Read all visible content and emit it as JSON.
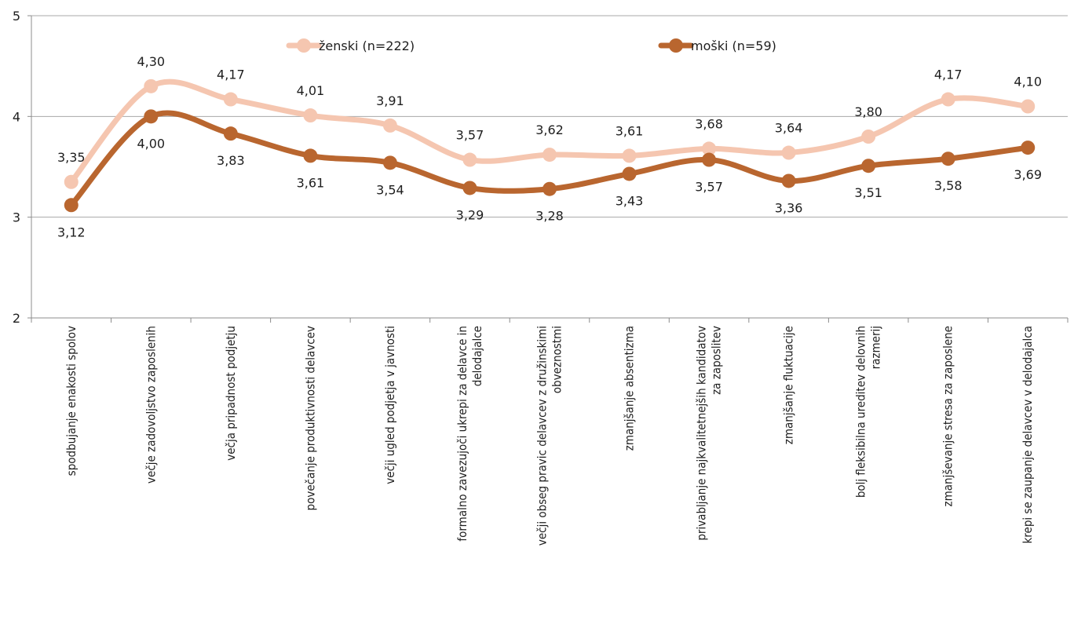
{
  "chart_data": {
    "type": "line",
    "categories": [
      "spodbujanje enakosti spolov",
      "večje zadovoljstvo zaposlenih",
      "večja pripadnost podjetju",
      "povečanje produktivnosti delavcev",
      "večji ugled podjetja v javnosti",
      "formalno zavezujoči ukrepi za delavce in delodajalce",
      "večji obseg pravic delavcev z družinskimi obveznostmi",
      "zmanjšanje absentizma",
      "privabljanje najkvalitetnejših kandidatov za zaposlitev",
      "zmanjšanje fluktuacije",
      "bolj fleksibilna ureditev delovnih razmerij",
      "zmanjševanje stresa za zaposlene",
      "krepi se zaupanje delavcev v delodajalca"
    ],
    "series": [
      {
        "name": "ženski (n=222)",
        "color": "#f5c6b0",
        "values": [
          3.35,
          4.3,
          4.17,
          4.01,
          3.91,
          3.57,
          3.62,
          3.61,
          3.68,
          3.64,
          3.8,
          4.17,
          4.1
        ],
        "labels": [
          "3,35",
          "4,30",
          "4,17",
          "4,01",
          "3,91",
          "3,57",
          "3,62",
          "3,61",
          "3,68",
          "3,64",
          "3,80",
          "4,17",
          "4,10"
        ]
      },
      {
        "name": "moški (n=59)",
        "color": "#b9662f",
        "values": [
          3.12,
          4.0,
          3.83,
          3.61,
          3.54,
          3.29,
          3.28,
          3.43,
          3.57,
          3.36,
          3.51,
          3.58,
          3.69
        ],
        "labels": [
          "3,12",
          "4,00",
          "3,83",
          "3,61",
          "3,54",
          "3,29",
          "3,28",
          "3,43",
          "3,57",
          "3,36",
          "3,51",
          "3,58",
          "3,69"
        ]
      }
    ],
    "yticks": [
      "2",
      "3",
      "4",
      "5"
    ],
    "ylim": [
      2,
      5
    ],
    "grid": true,
    "legend_position": "top"
  }
}
